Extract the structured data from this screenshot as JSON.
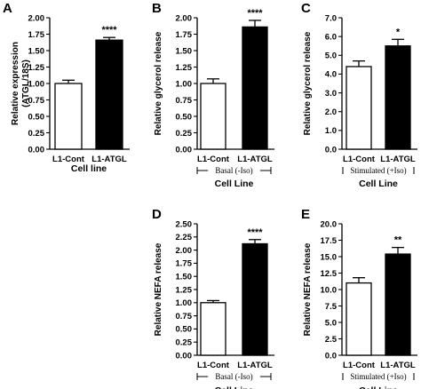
{
  "chart_data": [
    {
      "type": "bar",
      "panel": "A",
      "categories": [
        "L1-Cont",
        "L1-ATGL"
      ],
      "values": [
        1.0,
        1.66
      ],
      "errors": [
        0.05,
        0.04
      ],
      "significance": [
        "",
        "****"
      ],
      "ylabel": "Relative expression\n(ATGL/18S)",
      "xlabel": "Cell line",
      "condition": "",
      "ylim": [
        0,
        2.0
      ],
      "yticks": [
        0.0,
        0.25,
        0.5,
        0.75,
        1.0,
        1.25,
        1.5,
        1.75,
        2.0
      ],
      "ytick_labels": [
        "0.00",
        "0.25",
        "0.50",
        "0.75",
        "1.00",
        "1.25",
        "1.50",
        "1.75",
        "2.00"
      ],
      "bar_fills": [
        "#ffffff",
        "#000000"
      ]
    },
    {
      "type": "bar",
      "panel": "B",
      "categories": [
        "L1-Cont",
        "L1-ATGL"
      ],
      "values": [
        1.0,
        1.86
      ],
      "errors": [
        0.07,
        0.1
      ],
      "significance": [
        "",
        "****"
      ],
      "ylabel": "Relative glycerol release",
      "xlabel": "Cell Line",
      "condition": "Basal (-Iso)",
      "ylim": [
        0,
        2.0
      ],
      "yticks": [
        0.0,
        0.25,
        0.5,
        0.75,
        1.0,
        1.25,
        1.5,
        1.75,
        2.0
      ],
      "ytick_labels": [
        "0.00",
        "0.25",
        "0.50",
        "0.75",
        "1.00",
        "1.25",
        "1.50",
        "1.75",
        "2.00"
      ],
      "bar_fills": [
        "#ffffff",
        "#000000"
      ]
    },
    {
      "type": "bar",
      "panel": "C",
      "categories": [
        "L1-Cont",
        "L1-ATGL"
      ],
      "values": [
        4.4,
        5.5
      ],
      "errors": [
        0.3,
        0.35
      ],
      "significance": [
        "",
        "*"
      ],
      "ylabel": "Relative glycerol release",
      "xlabel": "Cell Line",
      "condition": "Stimulated (+Iso)",
      "ylim": [
        0,
        7.0
      ],
      "yticks": [
        0,
        1,
        2,
        3,
        4,
        5,
        6,
        7
      ],
      "ytick_labels": [
        "0.0",
        "1.0",
        "2.0",
        "3.0",
        "4.0",
        "5.0",
        "6.0",
        "7.0"
      ],
      "bar_fills": [
        "#ffffff",
        "#000000"
      ]
    },
    {
      "type": "bar",
      "panel": "D",
      "categories": [
        "L1-Cont",
        "L1-ATGL"
      ],
      "values": [
        1.0,
        2.12
      ],
      "errors": [
        0.04,
        0.08
      ],
      "significance": [
        "",
        "****"
      ],
      "ylabel": "Relative NEFA release",
      "xlabel": "Cell Line",
      "condition": "Basal (-Iso)",
      "ylim": [
        0,
        2.5
      ],
      "yticks": [
        0.0,
        0.25,
        0.5,
        0.75,
        1.0,
        1.25,
        1.5,
        1.75,
        2.0,
        2.25,
        2.5
      ],
      "ytick_labels": [
        "0.00",
        "0.25",
        "0.50",
        "0.75",
        "1.00",
        "1.25",
        "1.50",
        "1.75",
        "2.00",
        "2.25",
        "2.50"
      ],
      "bar_fills": [
        "#ffffff",
        "#000000"
      ]
    },
    {
      "type": "bar",
      "panel": "E",
      "categories": [
        "L1-Cont",
        "L1-ATGL"
      ],
      "values": [
        11.0,
        15.4
      ],
      "errors": [
        0.8,
        1.0
      ],
      "significance": [
        "",
        "**"
      ],
      "ylabel": "Relative NEFA release",
      "xlabel": "Cell Line",
      "condition": "Stimulated (+Iso)",
      "ylim": [
        0,
        20.0
      ],
      "yticks": [
        0,
        2.5,
        5,
        7.5,
        10,
        12.5,
        15,
        17.5,
        20
      ],
      "ytick_labels": [
        "0.0",
        "2.5",
        "5.0",
        "7.5",
        "10.0",
        "12.5",
        "15.0",
        "17.5",
        "20.0"
      ],
      "bar_fills": [
        "#ffffff",
        "#000000"
      ]
    }
  ]
}
